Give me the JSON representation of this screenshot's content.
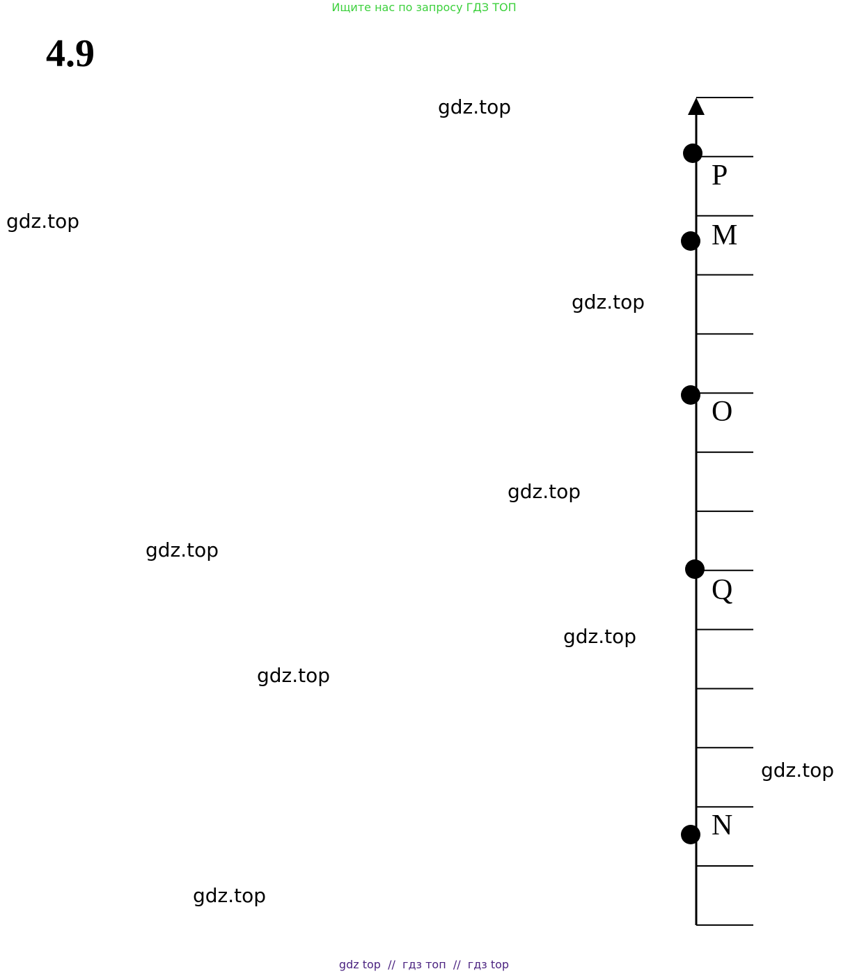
{
  "header": {
    "banner_text": "Ищите нас по запросу ГДЗ ТОП",
    "banner_color": "#3cd03c"
  },
  "problem": {
    "number": "4.9"
  },
  "watermarks": [
    "gdz.top",
    "gdz.top",
    "gdz.top",
    "gdz.top",
    "gdz.top",
    "gdz.top",
    "gdz.top",
    "gdz.top",
    "gdz.top"
  ],
  "number_line": {
    "orientation": "vertical",
    "arrow": "up",
    "division_count": 14,
    "points": [
      {
        "label": "P",
        "division": 1
      },
      {
        "label": "M",
        "division": 2.5
      },
      {
        "label": "O",
        "division": 5
      },
      {
        "label": "Q",
        "division": 8
      },
      {
        "label": "N",
        "division": 12.5
      }
    ]
  },
  "footer": {
    "text": "gdz top  //  гдз топ  //  гдз top",
    "color": "#4b2380"
  }
}
